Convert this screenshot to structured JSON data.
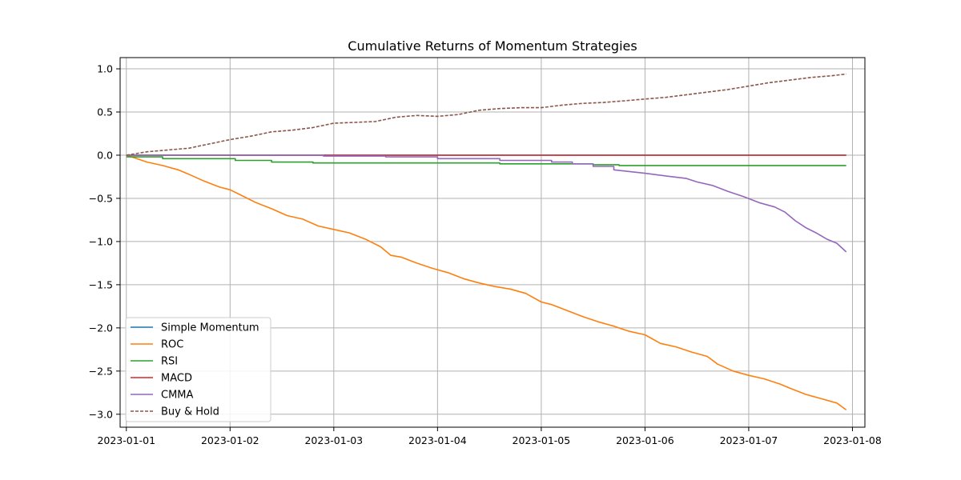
{
  "chart_data": {
    "type": "line",
    "title": "Cumulative Returns of Momentum Strategies",
    "xlabel": "",
    "ylabel": "",
    "x_ticks": [
      "2023-01-01",
      "2023-01-02",
      "2023-01-03",
      "2023-01-04",
      "2023-01-05",
      "2023-01-06",
      "2023-01-07",
      "2023-01-08"
    ],
    "y_ticks": [
      "1.0",
      "0.5",
      "0.0",
      "−0.5",
      "−1.0",
      "−1.5",
      "−2.0",
      "−2.5",
      "−3.0"
    ],
    "xlim": [
      -0.06,
      7.12
    ],
    "ylim": [
      -3.15,
      1.13
    ],
    "grid": true,
    "legend_position": "lower-left",
    "x_unit": "days since 2023-01-01 00:00",
    "series": [
      {
        "name": "Simple Momentum",
        "color": "#1f77b4",
        "dashed": false,
        "x": [
          0,
          6.94
        ],
        "y": [
          0,
          0
        ]
      },
      {
        "name": "ROC",
        "color": "#ff7f0e",
        "dashed": false,
        "x": [
          0,
          0.1,
          0.2,
          0.35,
          0.5,
          0.6,
          0.75,
          0.9,
          1.0,
          1.1,
          1.25,
          1.4,
          1.55,
          1.7,
          1.85,
          2.0,
          2.15,
          2.3,
          2.45,
          2.55,
          2.65,
          2.8,
          2.95,
          3.1,
          3.25,
          3.4,
          3.55,
          3.7,
          3.85,
          4.0,
          4.1,
          4.25,
          4.4,
          4.55,
          4.7,
          4.85,
          5.0,
          5.15,
          5.3,
          5.45,
          5.6,
          5.7,
          5.85,
          6.0,
          6.15,
          6.3,
          6.4,
          6.55,
          6.7,
          6.85,
          6.94
        ],
        "y": [
          0,
          -0.04,
          -0.08,
          -0.12,
          -0.17,
          -0.22,
          -0.3,
          -0.37,
          -0.4,
          -0.46,
          -0.55,
          -0.62,
          -0.7,
          -0.74,
          -0.82,
          -0.86,
          -0.9,
          -0.97,
          -1.06,
          -1.16,
          -1.18,
          -1.25,
          -1.31,
          -1.36,
          -1.43,
          -1.48,
          -1.52,
          -1.55,
          -1.6,
          -1.7,
          -1.73,
          -1.8,
          -1.87,
          -1.93,
          -1.98,
          -2.04,
          -2.08,
          -2.18,
          -2.22,
          -2.28,
          -2.33,
          -2.42,
          -2.5,
          -2.55,
          -2.59,
          -2.65,
          -2.7,
          -2.77,
          -2.82,
          -2.87,
          -2.95
        ]
      },
      {
        "name": "RSI",
        "color": "#2ca02c",
        "dashed": false,
        "x": [
          0,
          0.35,
          0.35,
          1.05,
          1.05,
          1.4,
          1.4,
          1.8,
          1.8,
          3.6,
          3.6,
          3.85,
          3.85,
          4.5,
          4.5,
          4.75,
          4.75,
          6.94
        ],
        "y": [
          -0.02,
          -0.02,
          -0.04,
          -0.04,
          -0.06,
          -0.06,
          -0.08,
          -0.08,
          -0.09,
          -0.09,
          -0.1,
          -0.1,
          -0.1,
          -0.1,
          -0.11,
          -0.11,
          -0.12,
          -0.12
        ]
      },
      {
        "name": "MACD",
        "color": "#d62728",
        "dashed": false,
        "x": [
          0,
          6.94
        ],
        "y": [
          0,
          0
        ]
      },
      {
        "name": "CMMA",
        "color": "#9467bd",
        "dashed": false,
        "x": [
          0,
          1.9,
          1.9,
          2.5,
          2.5,
          3.0,
          3.0,
          3.6,
          3.6,
          4.1,
          4.1,
          4.3,
          4.3,
          4.5,
          4.5,
          4.7,
          4.7,
          5.0,
          5.2,
          5.4,
          5.5,
          5.65,
          5.8,
          5.95,
          6.1,
          6.25,
          6.35,
          6.45,
          6.55,
          6.65,
          6.75,
          6.85,
          6.94
        ],
        "y": [
          0,
          0,
          -0.01,
          -0.01,
          -0.02,
          -0.02,
          -0.04,
          -0.04,
          -0.06,
          -0.06,
          -0.08,
          -0.08,
          -0.1,
          -0.1,
          -0.13,
          -0.13,
          -0.17,
          -0.21,
          -0.24,
          -0.27,
          -0.31,
          -0.35,
          -0.42,
          -0.48,
          -0.55,
          -0.6,
          -0.66,
          -0.76,
          -0.84,
          -0.9,
          -0.97,
          -1.02,
          -1.12
        ]
      },
      {
        "name": "Buy & Hold",
        "color": "#8c564b",
        "dashed": true,
        "x": [
          0,
          0.2,
          0.4,
          0.6,
          0.8,
          1.0,
          1.2,
          1.4,
          1.6,
          1.8,
          2.0,
          2.2,
          2.4,
          2.6,
          2.8,
          3.0,
          3.2,
          3.4,
          3.6,
          3.8,
          4.0,
          4.2,
          4.4,
          4.6,
          4.8,
          5.0,
          5.2,
          5.4,
          5.6,
          5.8,
          6.0,
          6.2,
          6.4,
          6.6,
          6.8,
          6.94
        ],
        "y": [
          0,
          0.04,
          0.06,
          0.08,
          0.13,
          0.18,
          0.22,
          0.27,
          0.29,
          0.32,
          0.37,
          0.38,
          0.39,
          0.44,
          0.46,
          0.45,
          0.47,
          0.52,
          0.54,
          0.55,
          0.55,
          0.58,
          0.6,
          0.61,
          0.63,
          0.65,
          0.67,
          0.7,
          0.73,
          0.76,
          0.8,
          0.84,
          0.87,
          0.9,
          0.92,
          0.94
        ]
      }
    ]
  }
}
